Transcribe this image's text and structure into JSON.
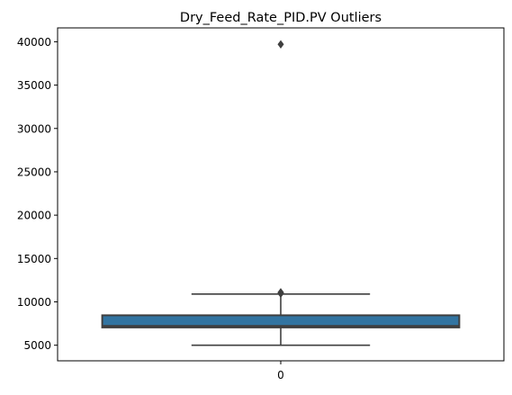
{
  "chart_data": {
    "type": "box",
    "title": "Dry_Feed_Rate_PID.PV Outliers",
    "xlabel": "",
    "ylabel": "",
    "categories": [
      "0"
    ],
    "ylim": [
      3200,
      41600
    ],
    "yticks": [
      5000,
      10000,
      15000,
      20000,
      25000,
      30000,
      35000,
      40000
    ],
    "ytick_labels": [
      "5000",
      "10000",
      "15000",
      "20000",
      "25000",
      "30000",
      "35000",
      "40000"
    ],
    "boxes": [
      {
        "category": "0",
        "whisker_low": 5000,
        "q1": 7050,
        "median": 7200,
        "q3": 8450,
        "whisker_high": 10900,
        "outliers": [
          10950,
          11000,
          11050,
          11100,
          39700
        ]
      }
    ],
    "grid": false,
    "legend": "none",
    "colors": {
      "box_fill": "#3274a1",
      "box_edge": "#3f3f3f",
      "axes": "#000000",
      "background": "#ffffff"
    }
  }
}
